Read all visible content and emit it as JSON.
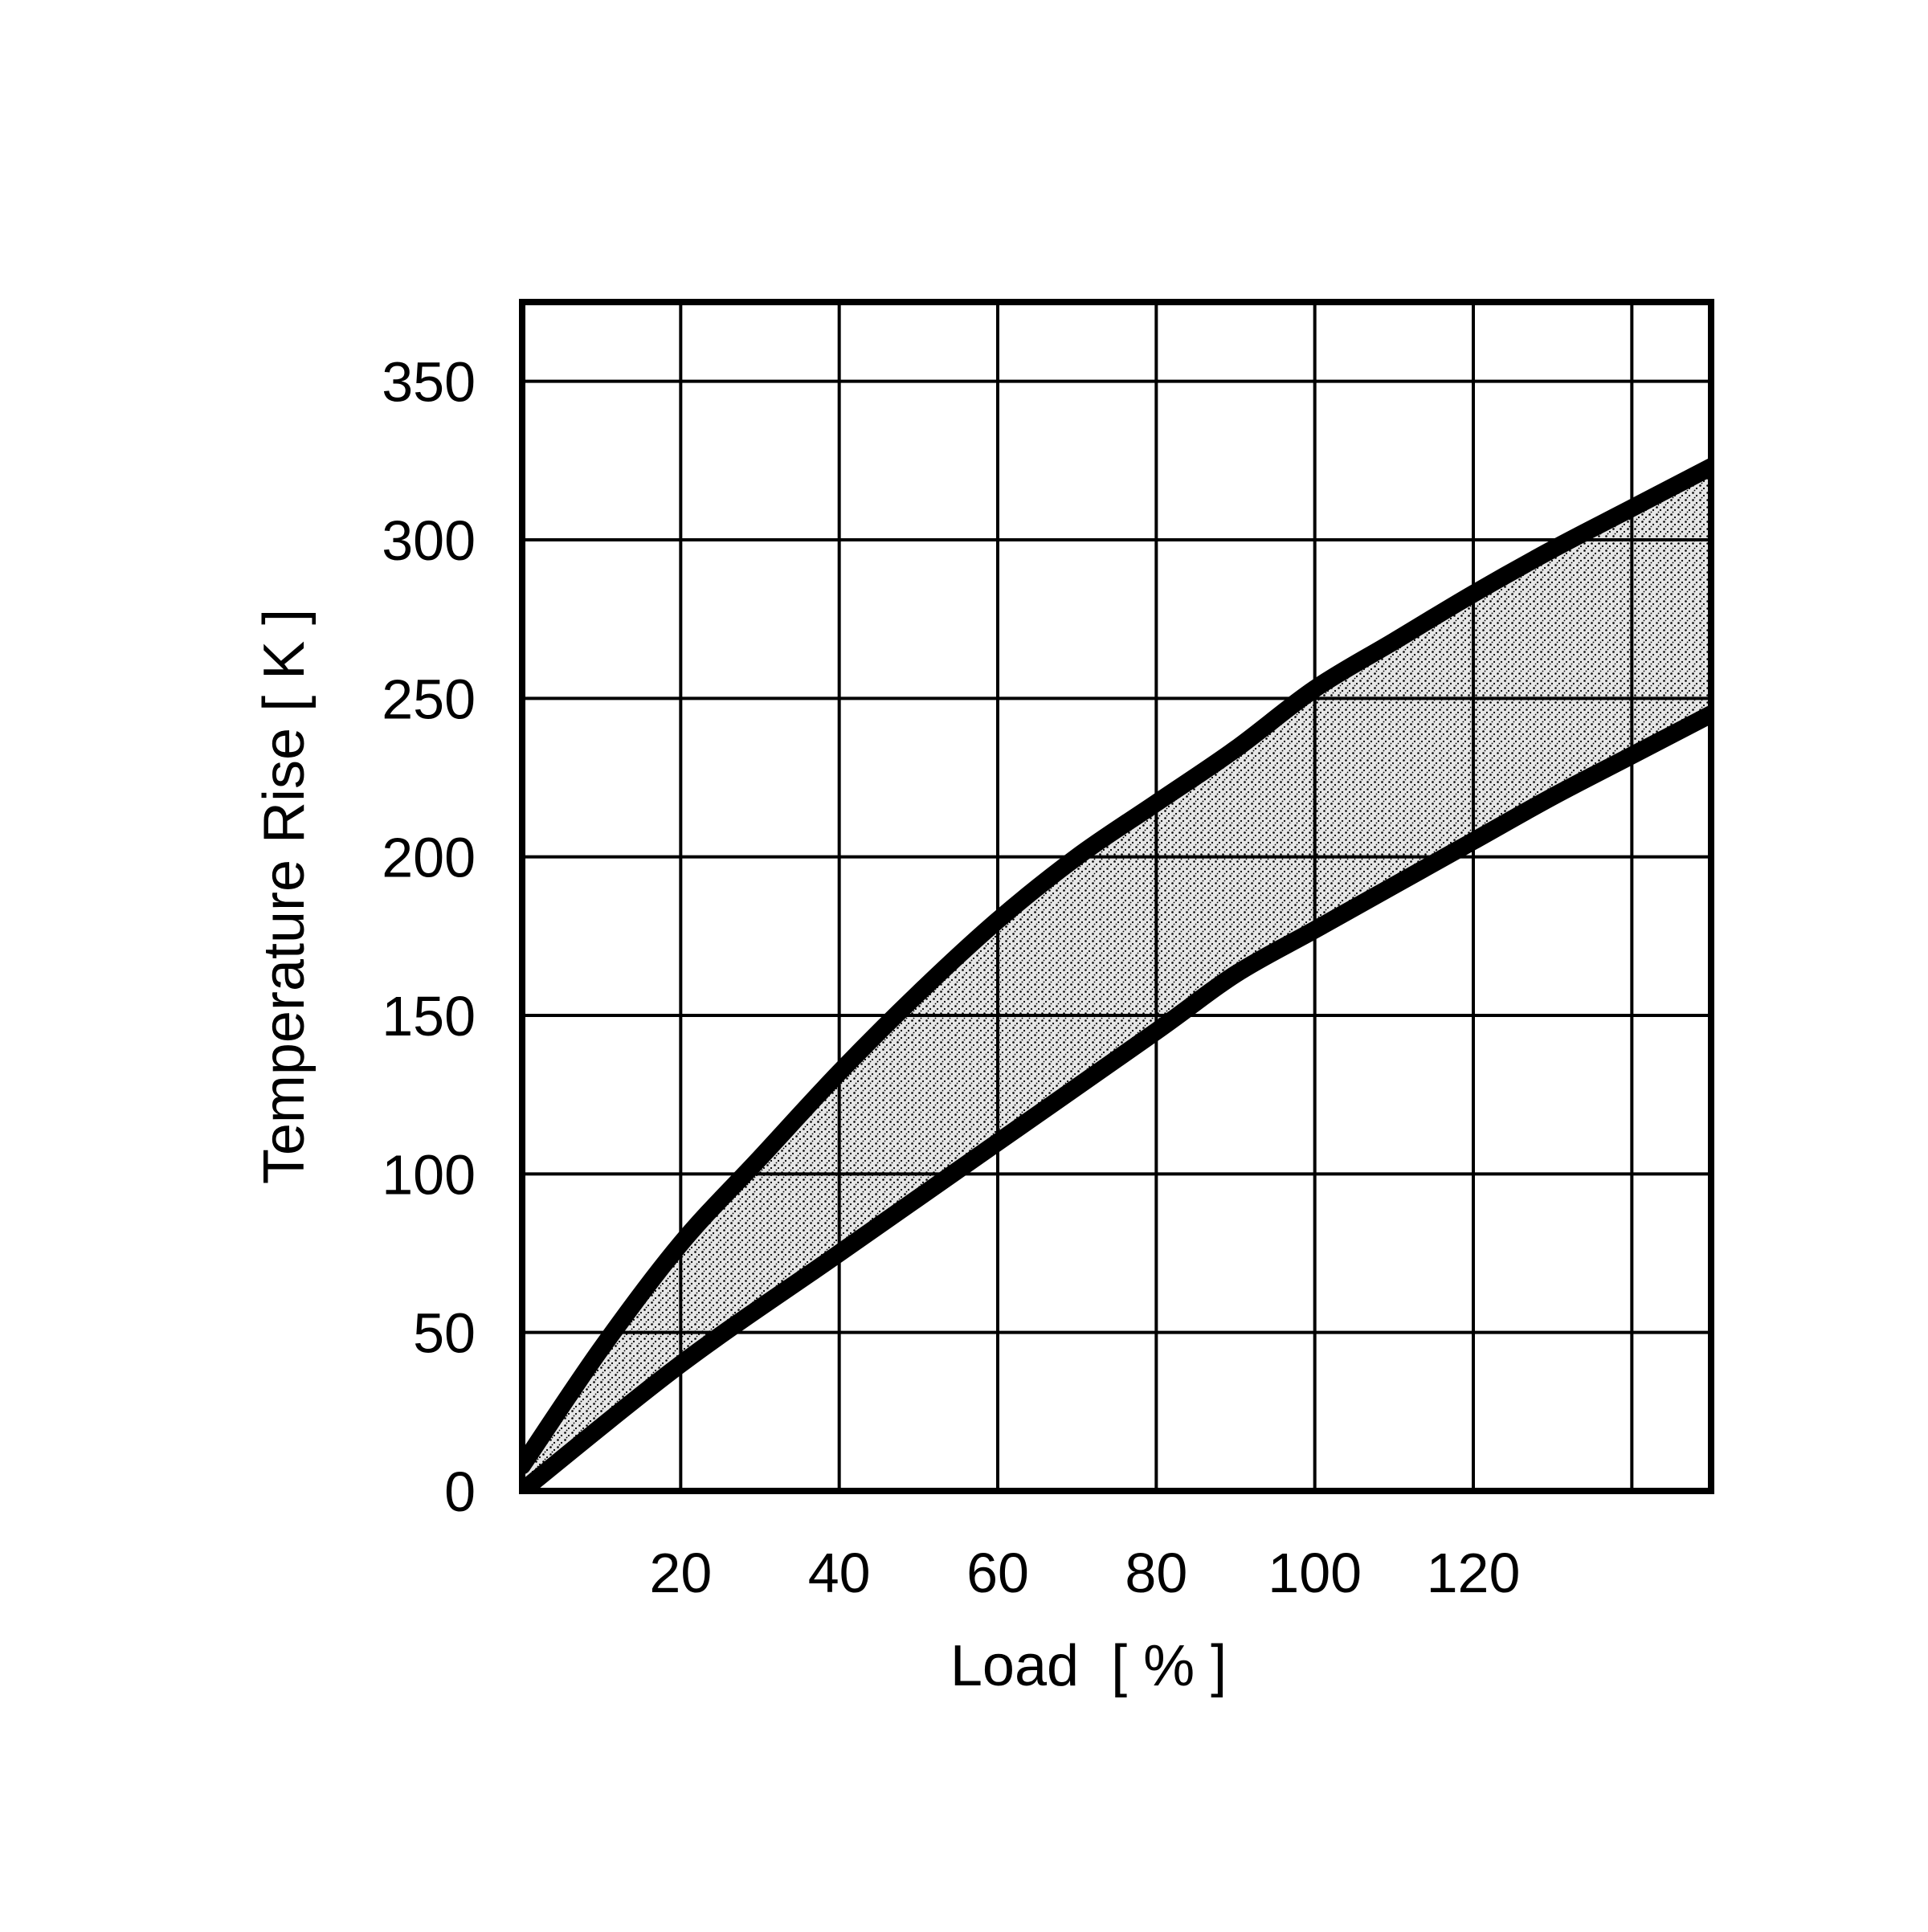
{
  "chart_data": {
    "type": "area",
    "title": "",
    "xlabel": "Load  [ % ]",
    "ylabel": "Temperature Rise [ K ]",
    "xlim": [
      0,
      150
    ],
    "ylim": [
      0,
      375
    ],
    "x_ticks": [
      20,
      40,
      60,
      80,
      100,
      120
    ],
    "x_tick_labels": [
      "20",
      "40",
      "60",
      "80",
      "100",
      "120"
    ],
    "x_gridlines": [
      20,
      40,
      60,
      80,
      100,
      120,
      140
    ],
    "y_ticks": [
      0,
      50,
      100,
      150,
      200,
      250,
      300,
      350
    ],
    "y_tick_labels": [
      "0",
      "50",
      "100",
      "150",
      "200",
      "250",
      "300",
      "350"
    ],
    "grid": true,
    "series": [
      {
        "role": "upper-bound",
        "x": [
          0,
          10,
          20,
          30,
          40,
          50,
          60,
          70,
          80,
          90,
          100,
          110,
          120,
          130,
          140,
          150
        ],
        "values": [
          8,
          45,
          78,
          105,
          132,
          157,
          180,
          200,
          217,
          234,
          253,
          268,
          283,
          297,
          310,
          323
        ]
      },
      {
        "role": "lower-bound",
        "x": [
          0,
          20,
          40,
          60,
          80,
          90,
          100,
          110,
          120,
          130,
          140,
          150
        ],
        "values": [
          0,
          40,
          75,
          110,
          145,
          163,
          177,
          191,
          205,
          219,
          232,
          245
        ]
      }
    ],
    "band_fill": "stippled gray region between the upper and lower curves",
    "colors": {
      "lines": "#000000",
      "grid": "#000000",
      "band": "#b8b8b8",
      "background": "#ffffff"
    }
  }
}
